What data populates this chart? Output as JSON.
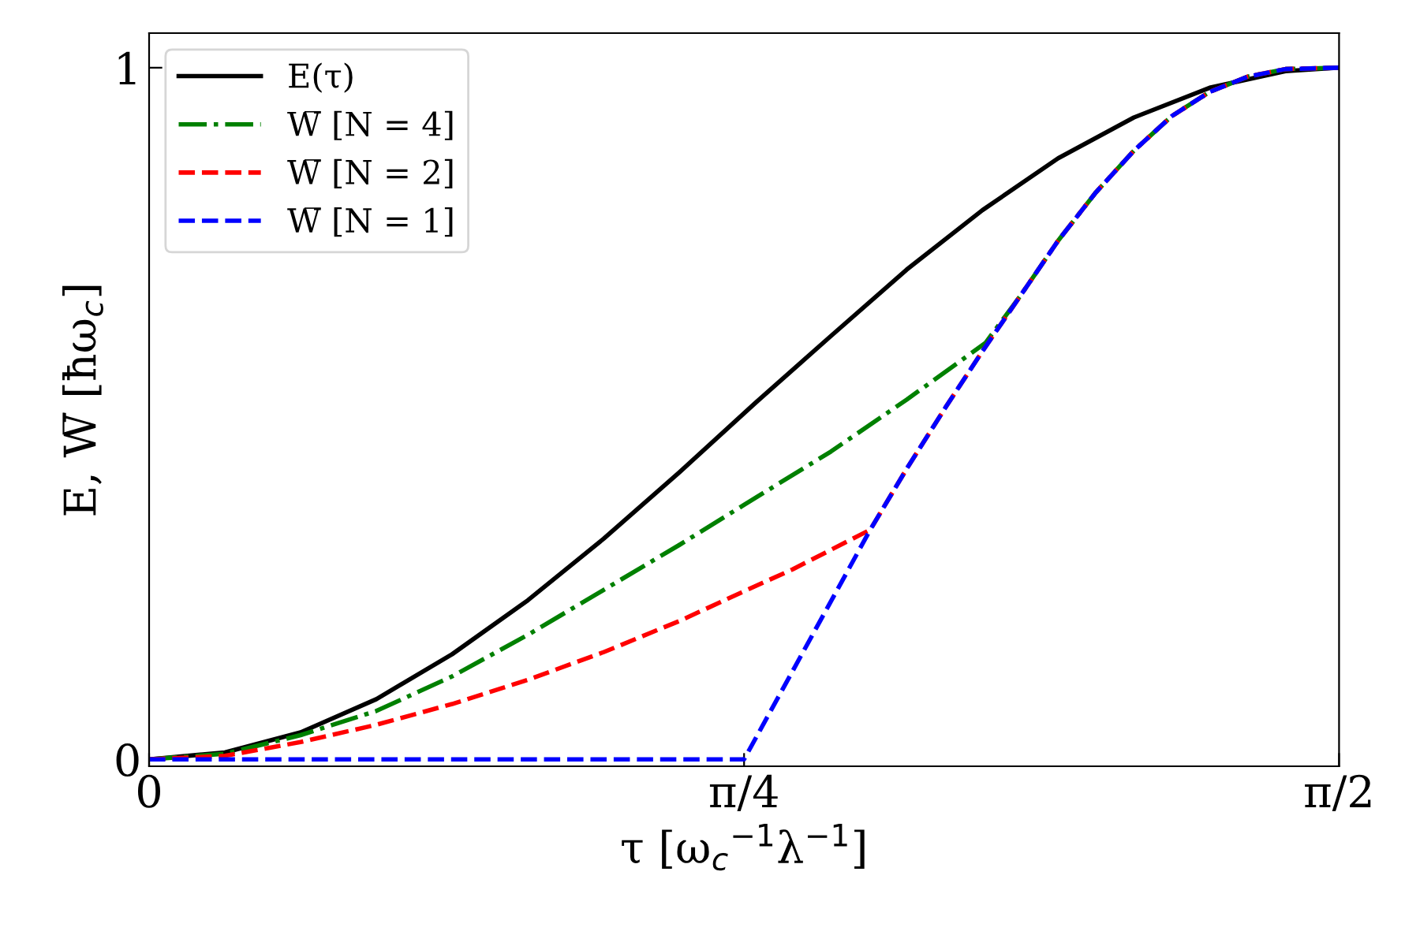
{
  "chart_data": {
    "type": "line",
    "xlabel": "τ [ω$_{c}$$^{−1}$λ$^{−1}$]",
    "ylabel": "E, W̅ [ħω$_{c}$]",
    "xlim": [
      0,
      1.5708
    ],
    "ylim": [
      -0.01,
      1.05
    ],
    "xticks": [
      0,
      {
        "value": 0.7854,
        "label": "π/4"
      },
      {
        "value": 1.5708,
        "label": "π/2"
      }
    ],
    "yticks": [
      0,
      1
    ],
    "grid": false,
    "legend": "top left",
    "series": [
      {
        "name": "E(τ)",
        "color": "#000000",
        "line_style": "solid",
        "x": [
          0,
          0.1,
          0.2,
          0.3,
          0.4,
          0.5,
          0.6,
          0.7,
          0.8,
          0.9,
          1.0,
          1.1,
          1.2,
          1.3,
          1.4,
          1.5,
          1.5708
        ],
        "values": [
          0,
          0.01,
          0.039,
          0.087,
          0.152,
          0.23,
          0.319,
          0.415,
          0.515,
          0.612,
          0.708,
          0.794,
          0.869,
          0.928,
          0.971,
          0.995,
          1.0
        ]
      },
      {
        "name": "W̅ [N = 4]",
        "color": "#008000",
        "line_style": "dashdot",
        "x": [
          0,
          0.1,
          0.2,
          0.3,
          0.4,
          0.5,
          0.6,
          0.7,
          0.7854,
          0.9,
          1.0,
          1.104,
          1.15,
          1.2,
          1.25,
          1.3,
          1.35,
          1.4,
          1.45,
          1.5,
          1.5708
        ],
        "values": [
          0,
          0.008,
          0.035,
          0.07,
          0.12,
          0.18,
          0.245,
          0.31,
          0.368,
          0.445,
          0.52,
          0.602,
          0.67,
          0.75,
          0.82,
          0.88,
          0.93,
          0.965,
          0.987,
          0.998,
          1.0
        ]
      },
      {
        "name": "W̅ [N = 2]",
        "color": "#ff0000",
        "line_style": "dashed",
        "x": [
          0,
          0.1,
          0.2,
          0.3,
          0.4,
          0.5,
          0.6,
          0.7,
          0.7854,
          0.85,
          0.952,
          1.0,
          1.052,
          1.1,
          1.15,
          1.2,
          1.25,
          1.3,
          1.35,
          1.4,
          1.45,
          1.5,
          1.5708
        ],
        "values": [
          0,
          0.005,
          0.025,
          0.05,
          0.08,
          0.115,
          0.155,
          0.2,
          0.243,
          0.275,
          0.332,
          0.42,
          0.51,
          0.59,
          0.67,
          0.75,
          0.82,
          0.88,
          0.93,
          0.965,
          0.987,
          0.998,
          1.0
        ]
      },
      {
        "name": "W̅ [N = 1]",
        "color": "#0000ff",
        "line_style": "dashed",
        "x": [
          0,
          0.7854,
          0.952,
          1.0,
          1.052,
          1.1,
          1.15,
          1.2,
          1.25,
          1.3,
          1.35,
          1.4,
          1.45,
          1.5,
          1.5708
        ],
        "values": [
          0,
          0,
          0.332,
          0.42,
          0.51,
          0.59,
          0.67,
          0.75,
          0.82,
          0.88,
          0.93,
          0.965,
          0.987,
          0.998,
          1.0
        ]
      }
    ]
  }
}
